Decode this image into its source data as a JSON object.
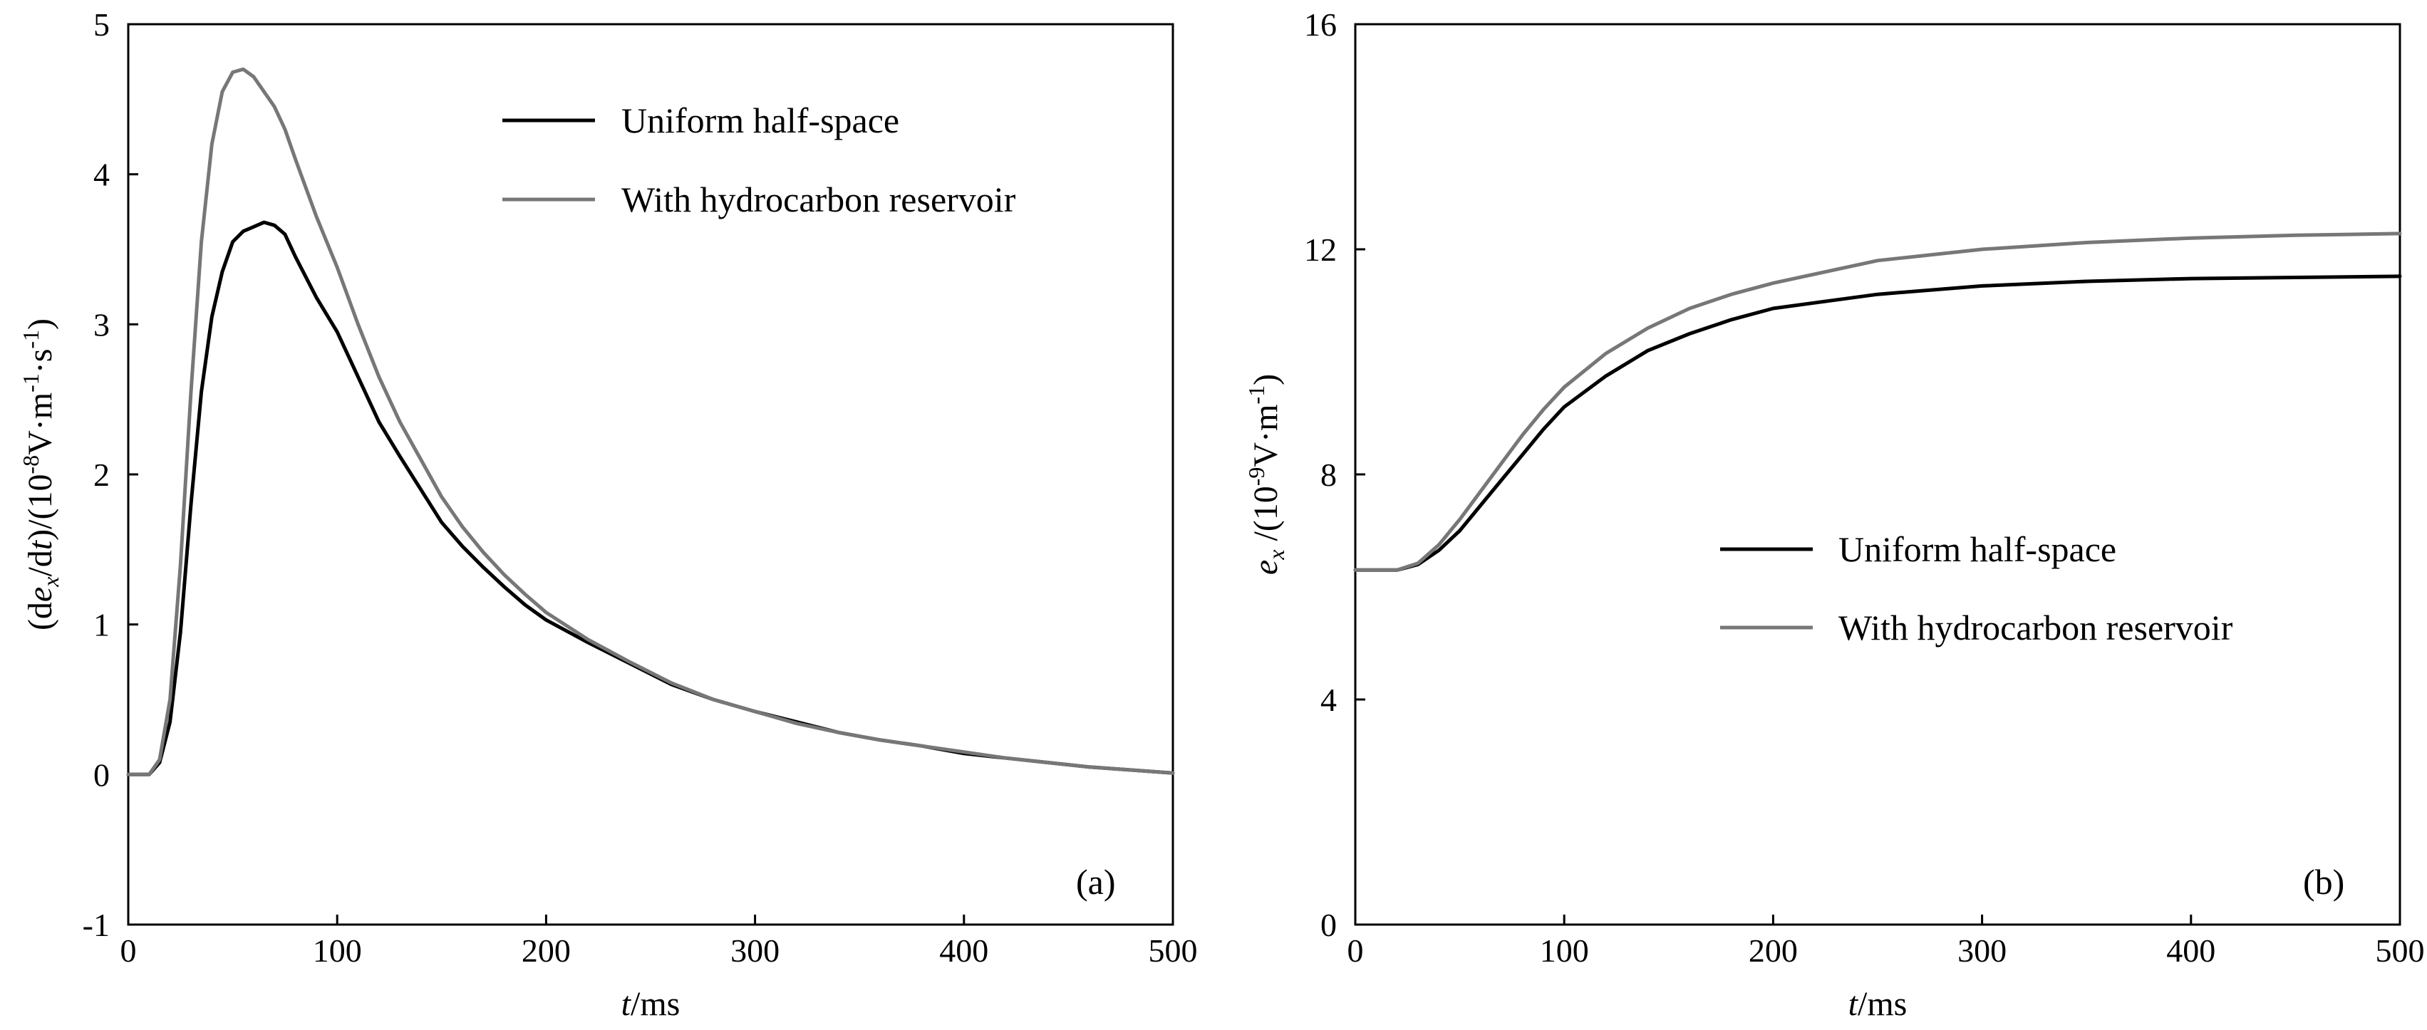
{
  "chart_data": [
    {
      "type": "line",
      "panel_label": "(a)",
      "xlabel": {
        "italic": "t",
        "unit": "/ms"
      },
      "ylabel": {
        "prefix": "(d",
        "var": "e",
        "var_sub": "x",
        "mid": "/d",
        "var2": "t",
        "unit_open": ")/(10",
        "exp1": "-8",
        "unit_mid": "V·m",
        "exp2": "-1",
        "dot": "·s",
        "exp3": "-1",
        "unit_close": ")"
      },
      "xlim": [
        0,
        500
      ],
      "ylim": [
        -1,
        5
      ],
      "xticks": [
        0,
        100,
        200,
        300,
        400,
        500
      ],
      "yticks": [
        -1,
        0,
        1,
        2,
        3,
        4,
        5
      ],
      "legend": {
        "position": "top-right"
      },
      "series": [
        {
          "name": "Uniform half-space",
          "color": "#000000",
          "x": [
            0,
            10,
            15,
            20,
            25,
            30,
            35,
            40,
            45,
            50,
            55,
            60,
            65,
            70,
            75,
            80,
            90,
            100,
            110,
            120,
            130,
            140,
            150,
            160,
            170,
            180,
            190,
            200,
            220,
            240,
            260,
            280,
            300,
            320,
            340,
            360,
            380,
            400,
            420,
            440,
            460,
            480,
            500
          ],
          "values": [
            0,
            0,
            0.08,
            0.35,
            0.95,
            1.8,
            2.55,
            3.05,
            3.35,
            3.55,
            3.62,
            3.65,
            3.68,
            3.66,
            3.6,
            3.45,
            3.18,
            2.95,
            2.65,
            2.35,
            2.12,
            1.9,
            1.68,
            1.52,
            1.38,
            1.25,
            1.13,
            1.03,
            0.88,
            0.74,
            0.6,
            0.5,
            0.42,
            0.35,
            0.28,
            0.23,
            0.19,
            0.14,
            0.11,
            0.08,
            0.05,
            0.03,
            0.01
          ]
        },
        {
          "name": "With hydrocarbon reservoir",
          "color": "#777777",
          "x": [
            0,
            10,
            15,
            20,
            25,
            30,
            35,
            40,
            45,
            50,
            55,
            60,
            65,
            70,
            75,
            80,
            90,
            100,
            110,
            120,
            130,
            140,
            150,
            160,
            170,
            180,
            190,
            200,
            220,
            240,
            260,
            280,
            300,
            320,
            340,
            360,
            380,
            400,
            420,
            440,
            460,
            480,
            500
          ],
          "values": [
            0,
            0,
            0.1,
            0.5,
            1.4,
            2.55,
            3.55,
            4.2,
            4.55,
            4.68,
            4.7,
            4.65,
            4.55,
            4.45,
            4.3,
            4.1,
            3.72,
            3.38,
            3.0,
            2.65,
            2.35,
            2.1,
            1.85,
            1.65,
            1.48,
            1.33,
            1.2,
            1.08,
            0.9,
            0.75,
            0.61,
            0.5,
            0.42,
            0.34,
            0.28,
            0.23,
            0.19,
            0.15,
            0.11,
            0.08,
            0.05,
            0.03,
            0.01
          ]
        }
      ]
    },
    {
      "type": "line",
      "panel_label": "(b)",
      "xlabel": {
        "italic": "t",
        "unit": "/ms"
      },
      "ylabel": {
        "var": "e",
        "var_sub": "x",
        "unit_open": " /(10",
        "exp1": "-9",
        "unit_mid": "V·m",
        "exp2": "-1",
        "unit_close": ")"
      },
      "xlim": [
        0,
        500
      ],
      "ylim": [
        0,
        16
      ],
      "xticks": [
        0,
        100,
        200,
        300,
        400,
        500
      ],
      "yticks": [
        0,
        4,
        8,
        12,
        16
      ],
      "legend": {
        "position": "center-right"
      },
      "series": [
        {
          "name": "Uniform half-space",
          "color": "#000000",
          "x": [
            0,
            20,
            30,
            40,
            50,
            60,
            70,
            80,
            90,
            100,
            120,
            140,
            160,
            180,
            200,
            250,
            300,
            350,
            400,
            450,
            500
          ],
          "values": [
            6.3,
            6.3,
            6.4,
            6.65,
            7.0,
            7.45,
            7.9,
            8.35,
            8.8,
            9.2,
            9.75,
            10.2,
            10.5,
            10.75,
            10.95,
            11.2,
            11.35,
            11.43,
            11.48,
            11.5,
            11.52
          ]
        },
        {
          "name": "With hydrocarbon reservoir",
          "color": "#777777",
          "x": [
            0,
            20,
            30,
            40,
            50,
            60,
            70,
            80,
            90,
            100,
            120,
            140,
            160,
            180,
            200,
            250,
            300,
            350,
            400,
            450,
            500
          ],
          "values": [
            6.3,
            6.3,
            6.42,
            6.75,
            7.2,
            7.7,
            8.2,
            8.7,
            9.15,
            9.55,
            10.15,
            10.6,
            10.95,
            11.2,
            11.4,
            11.8,
            12.0,
            12.12,
            12.2,
            12.25,
            12.28
          ]
        }
      ]
    }
  ]
}
